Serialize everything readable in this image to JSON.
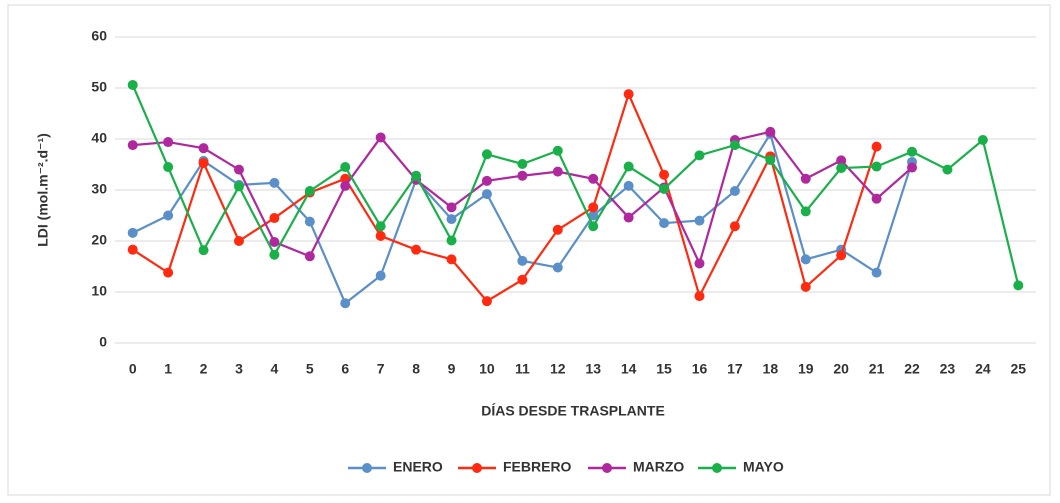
{
  "chart_data": {
    "type": "line",
    "x_label": "DÍAS DESDE TRASPLANTE",
    "y_label": "LDI (mol.m⁻².d⁻¹)",
    "categories": [
      0,
      1,
      2,
      3,
      4,
      5,
      6,
      7,
      8,
      9,
      10,
      11,
      12,
      13,
      14,
      15,
      16,
      17,
      18,
      19,
      20,
      21,
      22,
      23,
      24,
      25
    ],
    "ylim": [
      0,
      60
    ],
    "yticks": [
      0,
      10,
      20,
      30,
      40,
      50,
      60
    ],
    "grid": true,
    "legend": "bottom",
    "series": [
      {
        "name": "ENERO",
        "color": "#5b8fc9",
        "values": [
          21.6,
          25,
          35.7,
          31,
          31.4,
          23.8,
          7.8,
          13.2,
          32,
          24.3,
          29.2,
          16.1,
          14.8,
          25,
          30.8,
          23.5,
          24,
          29.8,
          41,
          16.4,
          18.3,
          13.8,
          35.5,
          null,
          null,
          null
        ]
      },
      {
        "name": "FEBRERO",
        "color": "#ff2a0f",
        "values": [
          18.3,
          13.8,
          35.3,
          20,
          24.5,
          29.5,
          32.2,
          21,
          18.3,
          16.4,
          8.2,
          12.4,
          22.2,
          26.6,
          48.8,
          33,
          9.2,
          22.9,
          36.6,
          11,
          17.2,
          38.5,
          null,
          null,
          null,
          null
        ]
      },
      {
        "name": "MARZO",
        "color": "#b0289e",
        "values": [
          38.8,
          39.4,
          38.2,
          34,
          19.8,
          17,
          30.8,
          40.3,
          32,
          26.6,
          31.8,
          32.8,
          33.6,
          32.2,
          24.6,
          30.5,
          15.6,
          39.8,
          41.4,
          32.2,
          35.8,
          28.3,
          34.4,
          null,
          null,
          null
        ]
      },
      {
        "name": "MAYO",
        "color": "#19b04a",
        "values": [
          50.6,
          34.5,
          18.2,
          30.7,
          17.3,
          29.8,
          34.5,
          22.9,
          32.8,
          20.1,
          37,
          35.1,
          37.7,
          22.9,
          34.6,
          30.2,
          36.8,
          38.8,
          35.9,
          25.8,
          34.3,
          34.6,
          37.5,
          34,
          39.8,
          11.3
        ]
      }
    ]
  }
}
